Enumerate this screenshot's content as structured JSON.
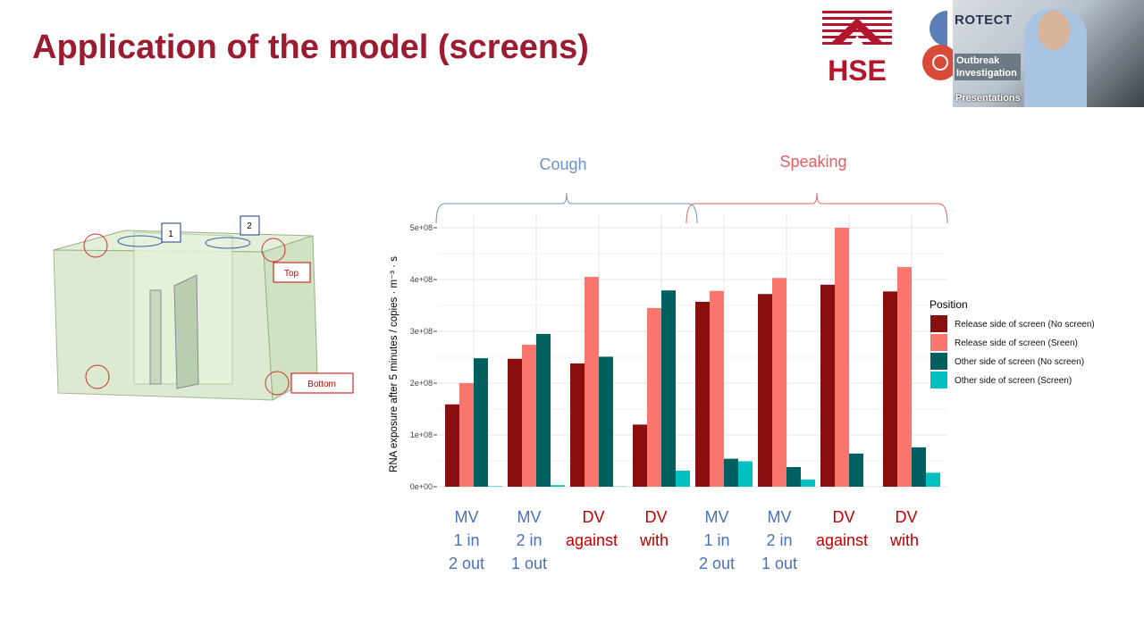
{
  "slide": {
    "title": "Application of the model (screens)",
    "logo_text": "HSE",
    "partner_logo_text": "ROTECT",
    "partner_banner_text": "Outbreak Investigation",
    "webcam_label": "Presentations",
    "diagram": {
      "labels": [
        "1",
        "2",
        "Top",
        "Bottom"
      ]
    }
  },
  "colors": {
    "title": "#9b1b30",
    "mv_label": "#4a72b8",
    "dv_label": "#c00000",
    "cough_brace": "#6f8fc8",
    "speaking_brace": "#e06060"
  },
  "chart_data": {
    "type": "bar",
    "ylabel": "RNA exposure after 5 minutes / copies · m⁻³ · s",
    "ylim": [
      0,
      500000000
    ],
    "yticks": [
      "0e+00",
      "1e+08",
      "2e+08",
      "3e+08",
      "4e+08",
      "5e+08"
    ],
    "grid": true,
    "legend_title": "Position",
    "legend_placement": "right",
    "group_labels": [
      {
        "text": "Cough",
        "span": [
          0,
          3
        ]
      },
      {
        "text": "Speaking",
        "span": [
          4,
          7
        ]
      }
    ],
    "categories": [
      [
        "MV",
        "1 in",
        "2 out"
      ],
      [
        "MV",
        "2 in",
        "1 out"
      ],
      [
        "DV",
        "against"
      ],
      [
        "DV",
        "with"
      ],
      [
        "MV",
        "1 in",
        "2 out"
      ],
      [
        "MV",
        "2 in",
        "1 out"
      ],
      [
        "DV",
        "against"
      ],
      [
        "DV",
        "with"
      ]
    ],
    "series": [
      {
        "name": "Release side of screen (No screen)",
        "color": "#8b0e0e",
        "values": [
          159000000,
          247000000,
          238000000,
          120000000,
          357000000,
          372000000,
          390000000,
          377000000
        ]
      },
      {
        "name": "Release side of screen (Sreen)",
        "color": "#f8766d",
        "values": [
          200000000,
          274000000,
          405000000,
          345000000,
          378000000,
          403000000,
          500000000,
          424000000
        ]
      },
      {
        "name": "Other side of screen (No screen)",
        "color": "#00605f",
        "values": [
          248000000,
          295000000,
          251000000,
          379000000,
          54000000,
          38000000,
          64000000,
          76000000
        ]
      },
      {
        "name": "Other side of screen (Screen)",
        "color": "#00c0c0",
        "values": [
          1000000,
          3000000,
          500000,
          31000000,
          49000000,
          14000000,
          0,
          27000000
        ]
      }
    ]
  }
}
